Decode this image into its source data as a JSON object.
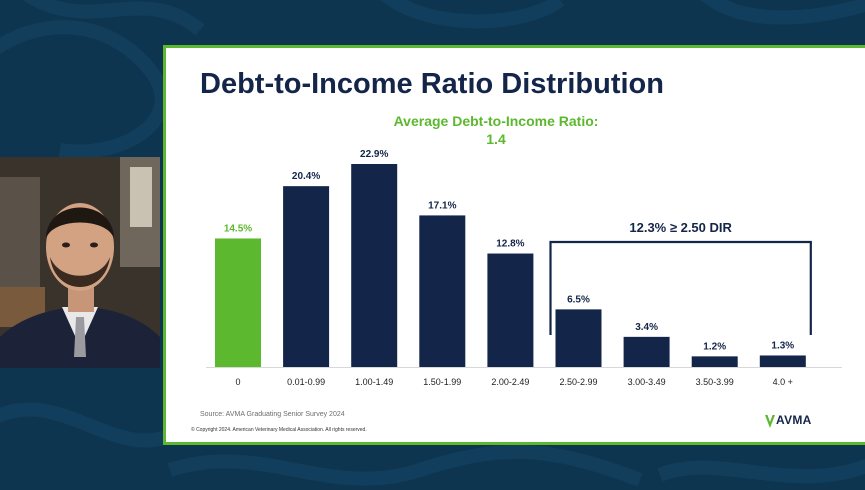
{
  "slide": {
    "title": "Debt-to-Income Ratio Distribution",
    "average_label": "Average Debt-to-Income Ratio:",
    "average_value": "1.4",
    "source": "Source: AVMA Graduating Senior Survey 2024",
    "copyright": "© Copyright 2024. American Veterinary Medical Association. All rights reserved.",
    "logo_text": "AVMA"
  },
  "colors": {
    "primary": "#14254a",
    "accent": "#5cb82e",
    "background": "#0e3550"
  },
  "chart_data": {
    "type": "bar",
    "title": "Debt-to-Income Ratio Distribution",
    "categories": [
      "0",
      "0.01-0.99",
      "1.00-1.49",
      "1.50-1.99",
      "2.00-2.49",
      "2.50-2.99",
      "3.00-3.49",
      "3.50-3.99",
      "4.0 +"
    ],
    "values": [
      14.5,
      20.4,
      22.9,
      17.1,
      12.8,
      6.5,
      3.4,
      1.2,
      1.3
    ],
    "value_labels": [
      "14.5%",
      "20.4%",
      "22.9%",
      "17.1%",
      "12.8%",
      "6.5%",
      "3.4%",
      "1.2%",
      "1.3%"
    ],
    "highlight_index": 0,
    "ylim": [
      0,
      22.9
    ],
    "grid": false,
    "annotation": {
      "text": "12.3% ≥ 2.50 DIR",
      "from_category": "2.50-2.99",
      "to_category": "4.0 +"
    }
  }
}
